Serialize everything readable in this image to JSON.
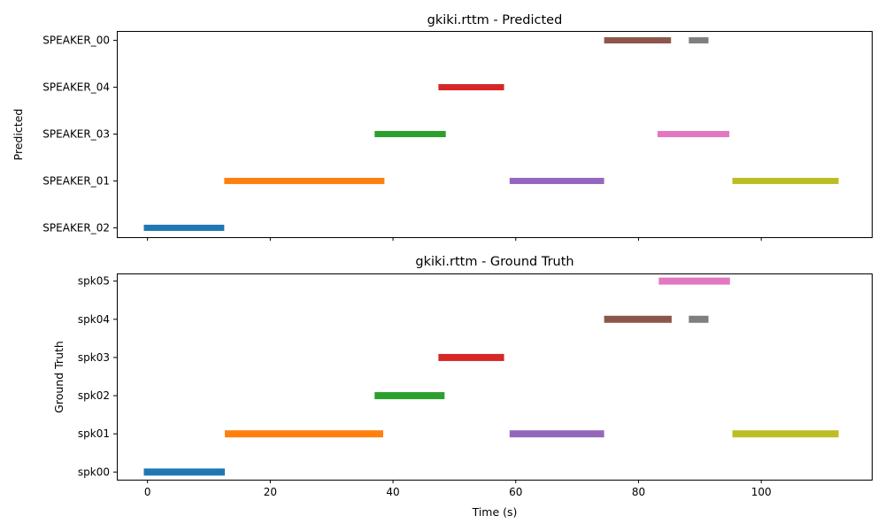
{
  "chart_data": [
    {
      "type": "gantt",
      "title": "gkiki.rttm - Predicted",
      "xlabel": "",
      "ylabel": "Predicted",
      "xlim": [
        -5,
        118
      ],
      "x_ticks": [
        0,
        20,
        40,
        60,
        80,
        100
      ],
      "x_tick_labels_shown": false,
      "categories": [
        "SPEAKER_02",
        "SPEAKER_01",
        "SPEAKER_03",
        "SPEAKER_04",
        "SPEAKER_00"
      ],
      "segments": [
        {
          "speaker": "SPEAKER_02",
          "start": -0.6,
          "end": 12.5,
          "color": "#1f77b4"
        },
        {
          "speaker": "SPEAKER_01",
          "start": 12.5,
          "end": 38.6,
          "color": "#ff7f0e"
        },
        {
          "speaker": "SPEAKER_03",
          "start": 37.0,
          "end": 48.6,
          "color": "#2ca02c"
        },
        {
          "speaker": "SPEAKER_04",
          "start": 47.4,
          "end": 58.1,
          "color": "#d62728"
        },
        {
          "speaker": "SPEAKER_01",
          "start": 59.0,
          "end": 74.4,
          "color": "#9467bd"
        },
        {
          "speaker": "SPEAKER_00",
          "start": 74.4,
          "end": 85.3,
          "color": "#8c564b"
        },
        {
          "speaker": "SPEAKER_03",
          "start": 83.1,
          "end": 94.8,
          "color": "#e377c2"
        },
        {
          "speaker": "SPEAKER_00",
          "start": 88.2,
          "end": 91.4,
          "color": "#7f7f7f"
        },
        {
          "speaker": "SPEAKER_01",
          "start": 95.3,
          "end": 112.6,
          "color": "#bcbd22"
        }
      ]
    },
    {
      "type": "gantt",
      "title": "gkiki.rttm - Ground Truth",
      "xlabel": "Time (s)",
      "ylabel": "Ground Truth",
      "xlim": [
        -5,
        118
      ],
      "x_ticks": [
        0,
        20,
        40,
        60,
        80,
        100
      ],
      "x_tick_labels_shown": true,
      "categories": [
        "spk00",
        "spk01",
        "spk02",
        "spk03",
        "spk04",
        "spk05"
      ],
      "segments": [
        {
          "speaker": "spk00",
          "start": -0.6,
          "end": 12.6,
          "color": "#1f77b4"
        },
        {
          "speaker": "spk01",
          "start": 12.6,
          "end": 38.4,
          "color": "#ff7f0e"
        },
        {
          "speaker": "spk02",
          "start": 37.0,
          "end": 48.4,
          "color": "#2ca02c"
        },
        {
          "speaker": "spk03",
          "start": 47.4,
          "end": 58.1,
          "color": "#d62728"
        },
        {
          "speaker": "spk01",
          "start": 59.0,
          "end": 74.4,
          "color": "#9467bd"
        },
        {
          "speaker": "spk04",
          "start": 74.4,
          "end": 85.4,
          "color": "#8c564b"
        },
        {
          "speaker": "spk05",
          "start": 83.3,
          "end": 94.9,
          "color": "#e377c2"
        },
        {
          "speaker": "spk04",
          "start": 88.2,
          "end": 91.4,
          "color": "#7f7f7f"
        },
        {
          "speaker": "spk01",
          "start": 95.3,
          "end": 112.6,
          "color": "#bcbd22"
        }
      ]
    }
  ]
}
